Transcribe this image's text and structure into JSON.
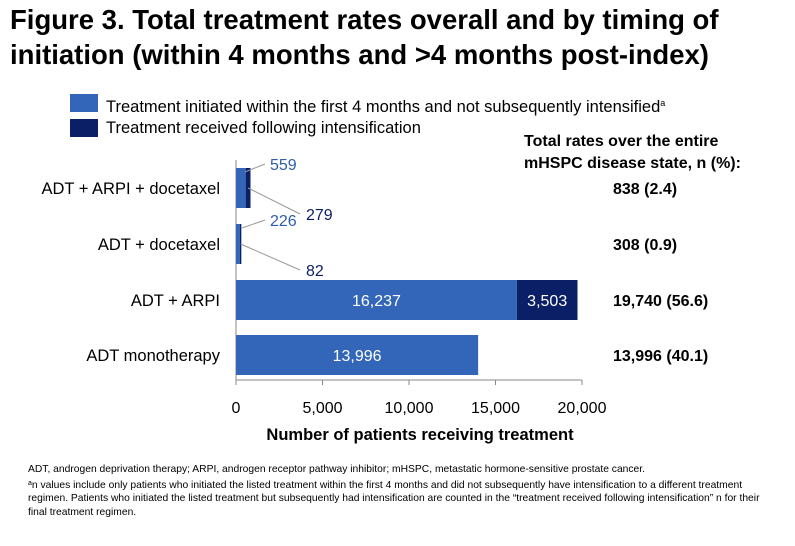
{
  "figure": {
    "title": "Figure 3. Total treatment rates overall and by timing of initiation (within 4 months and >4 months post-index)"
  },
  "legend": [
    {
      "label": "Treatment initiated within the first 4 months and not subsequently intensified",
      "sup": "a",
      "color": "#3366b8"
    },
    {
      "label": "Treatment received following intensification",
      "sup": "",
      "color": "#0a1f66"
    }
  ],
  "totals_header": {
    "line1": "Total rates over the entire",
    "line2": "mHSPC disease state, n (%):"
  },
  "chart_data": {
    "type": "bar",
    "orientation": "horizontal",
    "stacked": true,
    "categories": [
      "ADT + ARPI + docetaxel",
      "ADT + docetaxel",
      "ADT + ARPI",
      "ADT monotherapy"
    ],
    "series": [
      {
        "name": "Treatment initiated within the first 4 months and not subsequently intensified",
        "values": [
          559,
          226,
          16237,
          13996
        ],
        "labels": [
          "559",
          "226",
          "16,237",
          "13,996"
        ],
        "color": "#3366b8"
      },
      {
        "name": "Treatment received following intensification",
        "values": [
          279,
          82,
          3503,
          0
        ],
        "labels": [
          "279",
          "82",
          "3,503",
          ""
        ],
        "color": "#0a1f66"
      }
    ],
    "totals": [
      "838 (2.4)",
      "308 (0.9)",
      "19,740 (56.6)",
      "13,996 (40.1)"
    ],
    "xlabel": "Number of patients receiving treatment",
    "xlim": [
      0,
      20000
    ],
    "xticks": [
      0,
      5000,
      10000,
      15000,
      20000
    ],
    "xtick_labels": [
      "0",
      "5,000",
      "10,000",
      "15,000",
      "20,000"
    ],
    "grid": false
  },
  "footnotes": {
    "abbrev": "ADT, androgen deprivation therapy; ARPI, androgen receptor pathway inhibitor; mHSPC, metastatic hormone-sensitive prostate cancer.",
    "note_marker": "a",
    "note": "n values include only patients who initiated the listed treatment within the first 4 months and did not subsequently have intensification to a different treatment regimen. Patients who initiated the listed treatment but subsequently had intensification are counted in the “treatment received following intensification” n for their final treatment regimen."
  }
}
